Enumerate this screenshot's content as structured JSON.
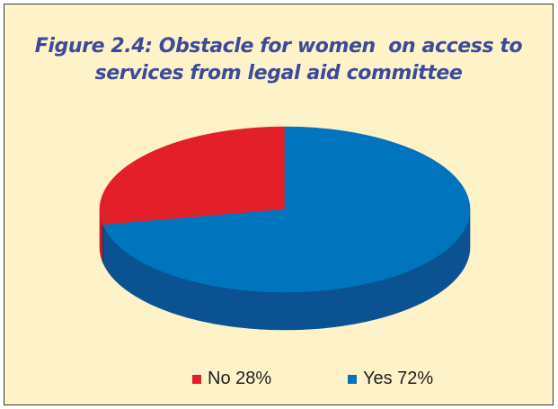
{
  "chart_data": {
    "type": "pie",
    "title_lines": [
      "Figure 2.4: Obstacle for women  on access to",
      "services from legal aid committee"
    ],
    "slices": [
      {
        "label": "No 28%",
        "value": 28,
        "color": "#e3202a",
        "side_color": "#c91820"
      },
      {
        "label": "Yes 72%",
        "value": 72,
        "color": "#0074bc",
        "side_color": "#0b5293"
      }
    ],
    "style": "3d",
    "legend_position": "bottom"
  },
  "colors": {
    "background": "#fdf2c8",
    "border": "#3a3a3a",
    "title": "#3d4a9a"
  }
}
